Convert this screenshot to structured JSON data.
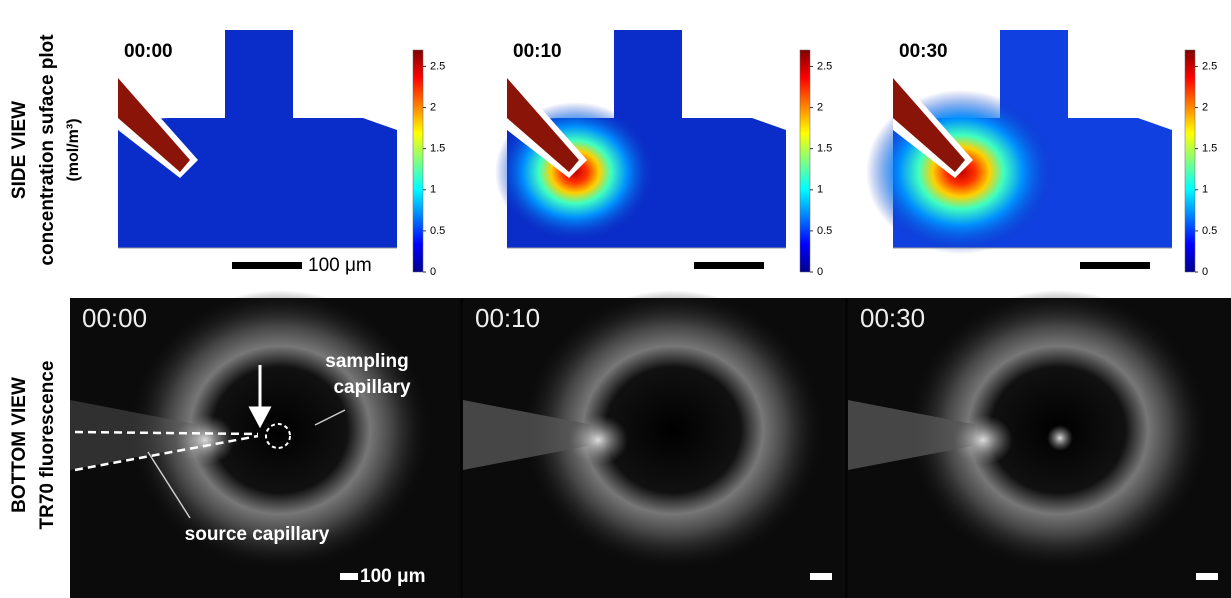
{
  "side_view": {
    "label": "SIDE VIEW",
    "sublabel": "concentration suface plot",
    "unit": "(mol/m³)",
    "colorbar_range": [
      0,
      2.7
    ],
    "colorbar_ticks": [
      2.5,
      2,
      1.5,
      1,
      0.5,
      0
    ],
    "panels": [
      {
        "time": "00:00"
      },
      {
        "time": "00:10"
      },
      {
        "time": "00:30"
      }
    ],
    "scale_label": "100 μm"
  },
  "bottom_view": {
    "label": "BOTTOM VIEW",
    "sublabel": "TR70 fluorescence",
    "panels": [
      {
        "time": "00:00"
      },
      {
        "time": "00:10"
      },
      {
        "time": "00:30"
      }
    ],
    "annotations": {
      "sampling_line1": "sampling",
      "sampling_line2": "capillary",
      "source": "source capillary"
    },
    "scale_label": "100 μm"
  }
}
